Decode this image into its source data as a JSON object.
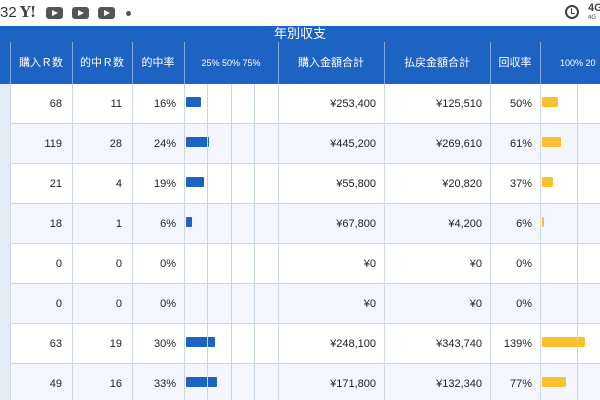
{
  "status_bar": {
    "time": "32",
    "yahoo_logo": "Y!",
    "icons": [
      "yahoo-icon",
      "youtube-icon",
      "youtube-icon",
      "youtube-icon",
      "dot-icon",
      "alarm-icon"
    ],
    "network": "4G",
    "network_sub": "4G"
  },
  "title": "年別収支",
  "headers": {
    "purchase_races": "購入Ｒ数",
    "hit_races": "的中Ｒ数",
    "hit_rate": "的中率",
    "hit_rate_scale": "25% 50% 75%",
    "purchase_total": "購入金額合計",
    "payout_total": "払戻金額合計",
    "recovery_rate": "回収率",
    "recovery_scale": "100% 20"
  },
  "rows": [
    {
      "purchase_races": "68",
      "hit_races": "11",
      "hit_rate": "16%",
      "hit_rate_value": 16,
      "purchase_total": "¥253,400",
      "payout_total": "¥125,510",
      "recovery_rate": "50%",
      "recovery_value": 50
    },
    {
      "purchase_races": "119",
      "hit_races": "28",
      "hit_rate": "24%",
      "hit_rate_value": 24,
      "purchase_total": "¥445,200",
      "payout_total": "¥269,610",
      "recovery_rate": "61%",
      "recovery_value": 61
    },
    {
      "purchase_races": "21",
      "hit_races": "4",
      "hit_rate": "19%",
      "hit_rate_value": 19,
      "purchase_total": "¥55,800",
      "payout_total": "¥20,820",
      "recovery_rate": "37%",
      "recovery_value": 37
    },
    {
      "purchase_races": "18",
      "hit_races": "1",
      "hit_rate": "6%",
      "hit_rate_value": 6,
      "purchase_total": "¥67,800",
      "payout_total": "¥4,200",
      "recovery_rate": "6%",
      "recovery_value": 6
    },
    {
      "purchase_races": "0",
      "hit_races": "0",
      "hit_rate": "0%",
      "hit_rate_value": 0,
      "purchase_total": "¥0",
      "payout_total": "¥0",
      "recovery_rate": "0%",
      "recovery_value": 0
    },
    {
      "purchase_races": "0",
      "hit_races": "0",
      "hit_rate": "0%",
      "hit_rate_value": 0,
      "purchase_total": "¥0",
      "payout_total": "¥0",
      "recovery_rate": "0%",
      "recovery_value": 0
    },
    {
      "purchase_races": "63",
      "hit_races": "19",
      "hit_rate": "30%",
      "hit_rate_value": 30,
      "purchase_total": "¥248,100",
      "payout_total": "¥343,740",
      "recovery_rate": "139%",
      "recovery_value": 139
    },
    {
      "purchase_races": "49",
      "hit_races": "16",
      "hit_rate": "33%",
      "hit_rate_value": 33,
      "purchase_total": "¥171,800",
      "payout_total": "¥132,340",
      "recovery_rate": "77%",
      "recovery_value": 77
    }
  ],
  "colors": {
    "header_bg": "#1d63c4",
    "hit_rate_bar": "#1d63c4",
    "recovery_bar": "#f9c132"
  }
}
